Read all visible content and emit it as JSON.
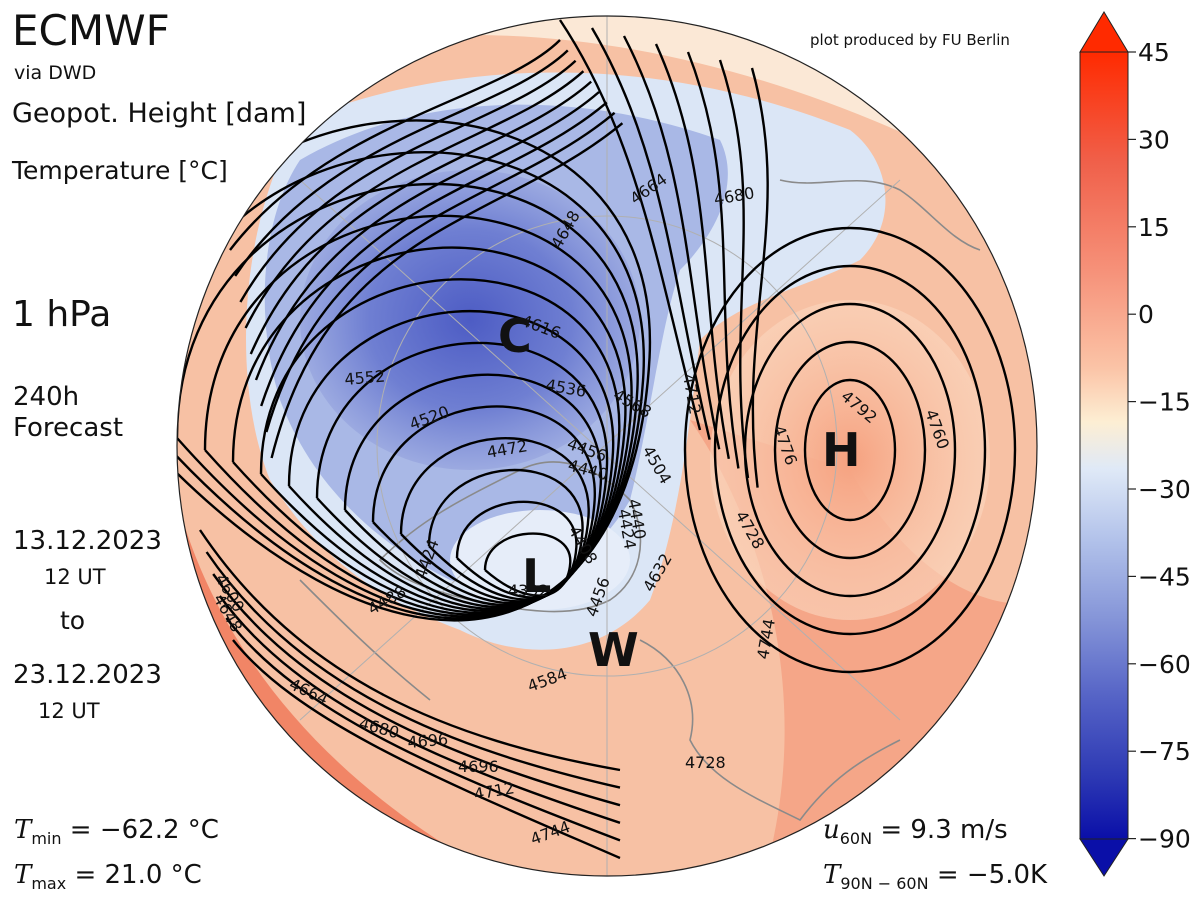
{
  "header": {
    "model": "ECMWF",
    "source": "via DWD",
    "credit": "plot produced by FU Berlin",
    "variable_1": "Geopot. Height [dam]",
    "variable_2": "Temperature [°C]",
    "level": "1 hPa",
    "forecast_1": "240h",
    "forecast_2": "Forecast",
    "start_date": "13.12.2023",
    "start_time": "12 UT",
    "to_label": "to",
    "end_date": "23.12.2023",
    "end_time": "12 UT"
  },
  "stats": {
    "tmin_label": "min",
    "tmin_value": "= −62.2 °C",
    "tmax_label": "max",
    "tmax_value": "= 21.0 °C",
    "u_label": "60N",
    "u_value": "= 9.3 m/s",
    "dt_label": "90N − 60N",
    "dt_value": "= −5.0K"
  },
  "colorbar": {
    "ticks": [
      "45",
      "30",
      "15",
      "0",
      "−15",
      "−30",
      "−45",
      "−60",
      "−75",
      "−90"
    ],
    "warm_color": "#ff2a00",
    "cold_color": "#0a0fa8"
  },
  "map_markers": [
    {
      "label": "C"
    },
    {
      "label": "L"
    },
    {
      "label": "W"
    },
    {
      "label": "H"
    }
  ],
  "contour_labels": [
    "4616",
    "4648",
    "4664",
    "4680",
    "4552",
    "4536",
    "4568",
    "4520",
    "4472",
    "4456",
    "4440",
    "4504",
    "4712",
    "4696",
    "4792",
    "4760",
    "4776",
    "4728",
    "4424",
    "4408",
    "4424",
    "4440",
    "4392",
    "4488",
    "4456",
    "4632",
    "4584",
    "4600",
    "4648",
    "4664",
    "4680",
    "4696",
    "4712",
    "4728",
    "4744",
    "4744"
  ]
}
